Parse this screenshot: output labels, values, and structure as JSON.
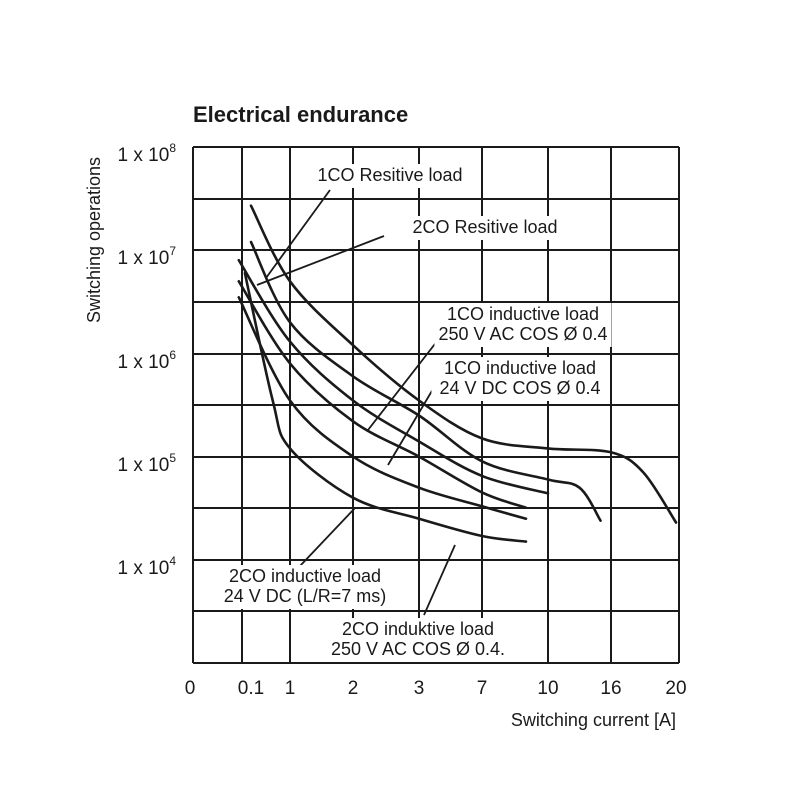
{
  "chart_data": {
    "type": "line",
    "title": "Electrical endurance",
    "xlabel": "Switching current [A]",
    "ylabel": "Switching operations",
    "log_y": true,
    "ylim": [
      1000,
      100000000
    ],
    "x_tick_labels": [
      "0",
      "0.1",
      "1",
      "2",
      "3",
      "7",
      "10",
      "16",
      "20"
    ],
    "y_ticks": [
      {
        "base": "1 x 10",
        "exp": "8"
      },
      {
        "base": "1 x 10",
        "exp": "7"
      },
      {
        "base": "1 x 10",
        "exp": "6"
      },
      {
        "base": "1 x 10",
        "exp": "5"
      },
      {
        "base": "1 x 10",
        "exp": "4"
      }
    ],
    "grid": true,
    "series": [
      {
        "name": "1CO Resitive load",
        "points": [
          [
            0.1,
            27000000
          ],
          [
            1,
            5000000
          ],
          [
            2,
            1200000
          ],
          [
            3,
            350000
          ],
          [
            7,
            150000
          ],
          [
            10,
            120000
          ],
          [
            16,
            110000
          ],
          [
            18,
            70000
          ],
          [
            20,
            23000
          ]
        ]
      },
      {
        "name": "2CO Resitive load",
        "points": [
          [
            0.1,
            12000000
          ],
          [
            1,
            2000000
          ],
          [
            2,
            600000
          ],
          [
            3,
            250000
          ],
          [
            7,
            90000
          ],
          [
            10,
            60000
          ],
          [
            13,
            50000
          ],
          [
            15,
            24000
          ]
        ]
      },
      {
        "name": "1CO inductive load 250 V AC COS Ø 0.4",
        "points": [
          [
            0.08,
            8000000
          ],
          [
            1,
            1300000
          ],
          [
            2,
            350000
          ],
          [
            3,
            140000
          ],
          [
            7,
            65000
          ],
          [
            10,
            44000
          ]
        ]
      },
      {
        "name": "1CO inductive load 24 V DC COS Ø 0.4",
        "points": [
          [
            0.08,
            5000000
          ],
          [
            1,
            800000
          ],
          [
            2,
            220000
          ],
          [
            3,
            100000
          ],
          [
            7,
            45000
          ],
          [
            9,
            32000
          ]
        ]
      },
      {
        "name": "2CO inductive load 24 V DC (L/R=7 ms)",
        "points": [
          [
            0.08,
            3500000
          ],
          [
            1,
            350000
          ],
          [
            2,
            100000
          ],
          [
            3,
            50000
          ],
          [
            7,
            33000
          ],
          [
            9,
            25000
          ]
        ]
      },
      {
        "name": "2CO induktive load 250 V AC COS Ø 0.4.",
        "points": [
          [
            0.09,
            6000000
          ],
          [
            0.6,
            350000
          ],
          [
            1,
            120000
          ],
          [
            2,
            40000
          ],
          [
            3,
            25000
          ],
          [
            7,
            17000
          ],
          [
            9,
            15000
          ]
        ]
      }
    ]
  }
}
